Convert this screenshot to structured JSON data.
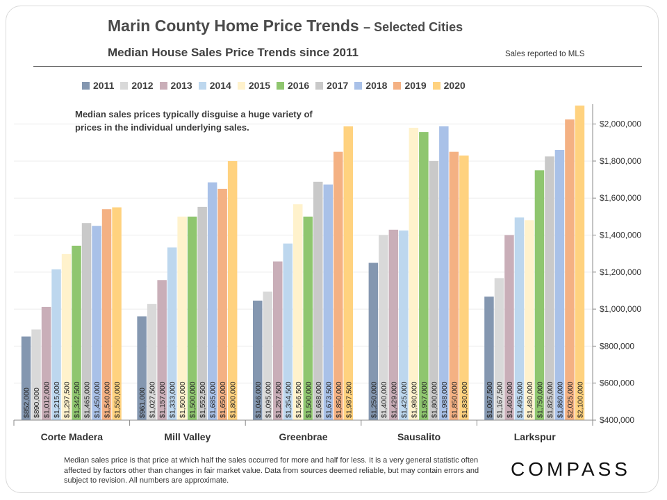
{
  "header": {
    "title": "Marin County Home Price Trends",
    "title_suffix": "– Selected Cities",
    "subtitle": "Median House Sales Price Trends since 2011",
    "source_note": "Sales reported to MLS"
  },
  "annotation": "Median sales prices typically disguise a huge variety of prices in the individual underlying sales.",
  "footnote": "Median sales price is that price at which half the sales occurred for more and half for less. It is a very general statistic often affected by factors other than changes in fair market value. Data from sources deemed reliable, but may contain errors and subject to revision. All numbers are approximate.",
  "logo": "COMPASS",
  "chart_data": {
    "type": "bar",
    "categories": [
      "Corte Madera",
      "Mill Valley",
      "Greenbrae",
      "Sausalito",
      "Larkspur"
    ],
    "series": [
      {
        "name": "2011",
        "color": "#8497b0",
        "values": [
          852000,
          961000,
          1046000,
          1250000,
          1067500
        ],
        "labels": [
          "$852,000",
          "$961,000",
          "$1,046,000",
          "$1,250,000",
          "$1,067,500"
        ]
      },
      {
        "name": "2012",
        "color": "#d9d9d9",
        "values": [
          890000,
          1027500,
          1095000,
          1400000,
          1167500
        ],
        "labels": [
          "$890,000",
          "$1,027,500",
          "$1,095,000",
          "$1,400,000",
          "$1,167,500"
        ]
      },
      {
        "name": "2013",
        "color": "#c9aeb8",
        "values": [
          1012000,
          1157000,
          1257500,
          1429000,
          1400000
        ],
        "labels": [
          "$1,012,000",
          "$1,157,000",
          "$1,257,500",
          "$1,429,000",
          "$1,400,000"
        ]
      },
      {
        "name": "2014",
        "color": "#bdd7ee",
        "values": [
          1215000,
          1333000,
          1354500,
          1425000,
          1495000
        ],
        "labels": [
          "$1,215,000",
          "$1,333,000",
          "$1,354,500",
          "$1,425,000",
          "$1,495,000"
        ]
      },
      {
        "name": "2015",
        "color": "#fff2cc",
        "values": [
          1297500,
          1500000,
          1566500,
          1980000,
          1480000
        ],
        "labels": [
          "$1,297,500",
          "$1,500,000",
          "$1,566,500",
          "$1,980,000",
          "$1,480,000"
        ]
      },
      {
        "name": "2016",
        "color": "#8fc66f",
        "values": [
          1342500,
          1500000,
          1500000,
          1957000,
          1750000
        ],
        "labels": [
          "$1,342,500",
          "$1,500,000",
          "$1,500,000",
          "$1,957,000",
          "$1,750,000"
        ]
      },
      {
        "name": "2017",
        "color": "#c9c9c9",
        "values": [
          1465000,
          1552500,
          1688000,
          1800000,
          1825000
        ],
        "labels": [
          "$1,465,000",
          "$1,552,500",
          "$1,688,000",
          "$1,800,000",
          "$1,825,000"
        ]
      },
      {
        "name": "2018",
        "color": "#a9c1e8",
        "values": [
          1450000,
          1685000,
          1673500,
          1988000,
          1860000
        ],
        "labels": [
          "$1,450,000",
          "$1,685,000",
          "$1,673,500",
          "$1,988,000",
          "$1,860,000"
        ]
      },
      {
        "name": "2019",
        "color": "#f4b183",
        "values": [
          1540000,
          1650000,
          1850000,
          1850000,
          2025000
        ],
        "labels": [
          "$1,540,000",
          "$1,650,000",
          "$1,850,000",
          "$1,850,000",
          "$2,025,000"
        ]
      },
      {
        "name": "2020",
        "color": "#ffd27f",
        "values": [
          1550000,
          1800000,
          1987500,
          1830000,
          2100000
        ],
        "labels": [
          "$1,550,000",
          "$1,800,000",
          "$1,987,500",
          "$1,830,000",
          "$2,100,000"
        ]
      }
    ],
    "ylim": [
      400000,
      2100000
    ],
    "yticks": [
      400000,
      600000,
      800000,
      1000000,
      1200000,
      1400000,
      1600000,
      1800000,
      2000000
    ],
    "ytick_labels": [
      "$400,000",
      "$600,000",
      "$800,000",
      "$1,000,000",
      "$1,200,000",
      "$1,400,000",
      "$1,600,000",
      "$1,800,000",
      "$2,000,000"
    ],
    "y_axis_side": "right",
    "grid": true,
    "legend": "top",
    "xlabel": "",
    "ylabel": ""
  }
}
